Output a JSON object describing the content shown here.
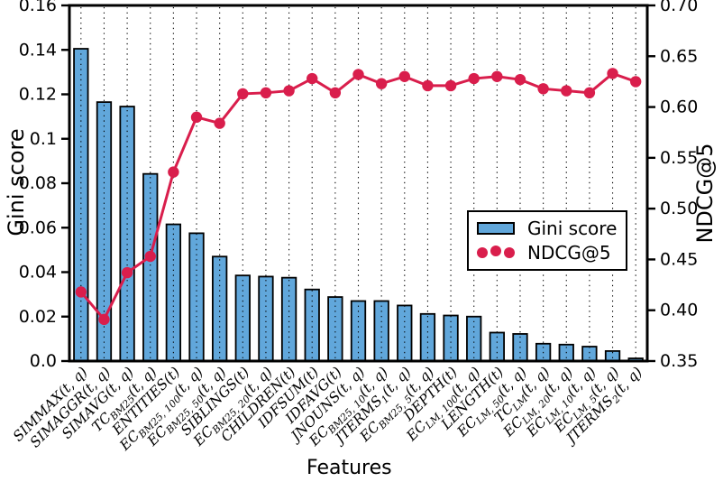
{
  "figure": {
    "xlabel": "Features",
    "ylabel_left": "Gini score",
    "ylabel_right": "NDCG@5",
    "colors": {
      "bar_fill": "#61a7db",
      "bar_edge": "#000000",
      "line": "#d91e4c",
      "frame": "#000000",
      "background": "#ffffff"
    }
  },
  "chart_data": {
    "type": "bar",
    "title": "",
    "xlabel": "Features",
    "grid": "dotted-vertical",
    "legend_position": "center-right",
    "categories": [
      "SIMMAX(t, q)",
      "SIMAGGR(t, q)",
      "SIMAVG(t, q)",
      "TC_{BM25}(t, q)",
      "ENTITIES(t)",
      "EC_{BM25, 100}(t, q)",
      "EC_{BM25, 50}(t, q)",
      "SIBLINGS(t)",
      "EC_{BM25, 20}(t, q)",
      "CHILDREN(t)",
      "IDFSUM(t)",
      "IDFAVG(t)",
      "JNOUNS(t, q)",
      "EC_{BM25, 10}(t, q)",
      "JTERMS_{1}(t, q)",
      "EC_{BM25, 5}(t, q)",
      "DEPTH(t)",
      "EC_{LM, 100}(t, q)",
      "LENGTH(t)",
      "EC_{LM, 50}(t, q)",
      "TC_{LM}(t, q)",
      "EC_{LM, 20}(t, q)",
      "EC_{LM, 10}(t, q)",
      "EC_{LM, 5}(t, q)",
      "JTERMS_{2}(t, q)"
    ],
    "series": [
      {
        "name": "Gini score",
        "type": "bar",
        "axis": "left",
        "values": [
          0.1405,
          0.1165,
          0.1145,
          0.0842,
          0.0615,
          0.0575,
          0.047,
          0.0385,
          0.038,
          0.0375,
          0.0322,
          0.0288,
          0.027,
          0.027,
          0.025,
          0.0212,
          0.0205,
          0.02,
          0.0128,
          0.0122,
          0.0078,
          0.0074,
          0.0065,
          0.0045,
          0.0012
        ]
      },
      {
        "name": "NDCG@5",
        "type": "line",
        "axis": "right",
        "values": [
          0.418,
          0.391,
          0.437,
          0.453,
          0.536,
          0.59,
          0.584,
          0.613,
          0.614,
          0.616,
          0.628,
          0.614,
          0.632,
          0.623,
          0.63,
          0.621,
          0.621,
          0.628,
          0.63,
          0.627,
          0.618,
          0.616,
          0.614,
          0.633,
          0.625
        ]
      }
    ],
    "left_axis": {
      "label": "Gini score",
      "lim": [
        0,
        0.16
      ],
      "tick_values": [
        0,
        0.02,
        0.04,
        0.06,
        0.08,
        0.1,
        0.12,
        0.14,
        0.16
      ],
      "ticks": [
        "0.0",
        "0.02",
        "0.04",
        "0.06",
        "0.08",
        "0.1",
        "0.12",
        "0.14",
        "0.16"
      ]
    },
    "right_axis": {
      "label": "NDCG@5",
      "lim": [
        0.35,
        0.7
      ],
      "tick_values": [
        0.35,
        0.4,
        0.45,
        0.5,
        0.55,
        0.6,
        0.65,
        0.7
      ],
      "ticks": [
        "0.35",
        "0.40",
        "0.45",
        "0.50",
        "0.55",
        "0.60",
        "0.65",
        "0.70"
      ]
    }
  }
}
